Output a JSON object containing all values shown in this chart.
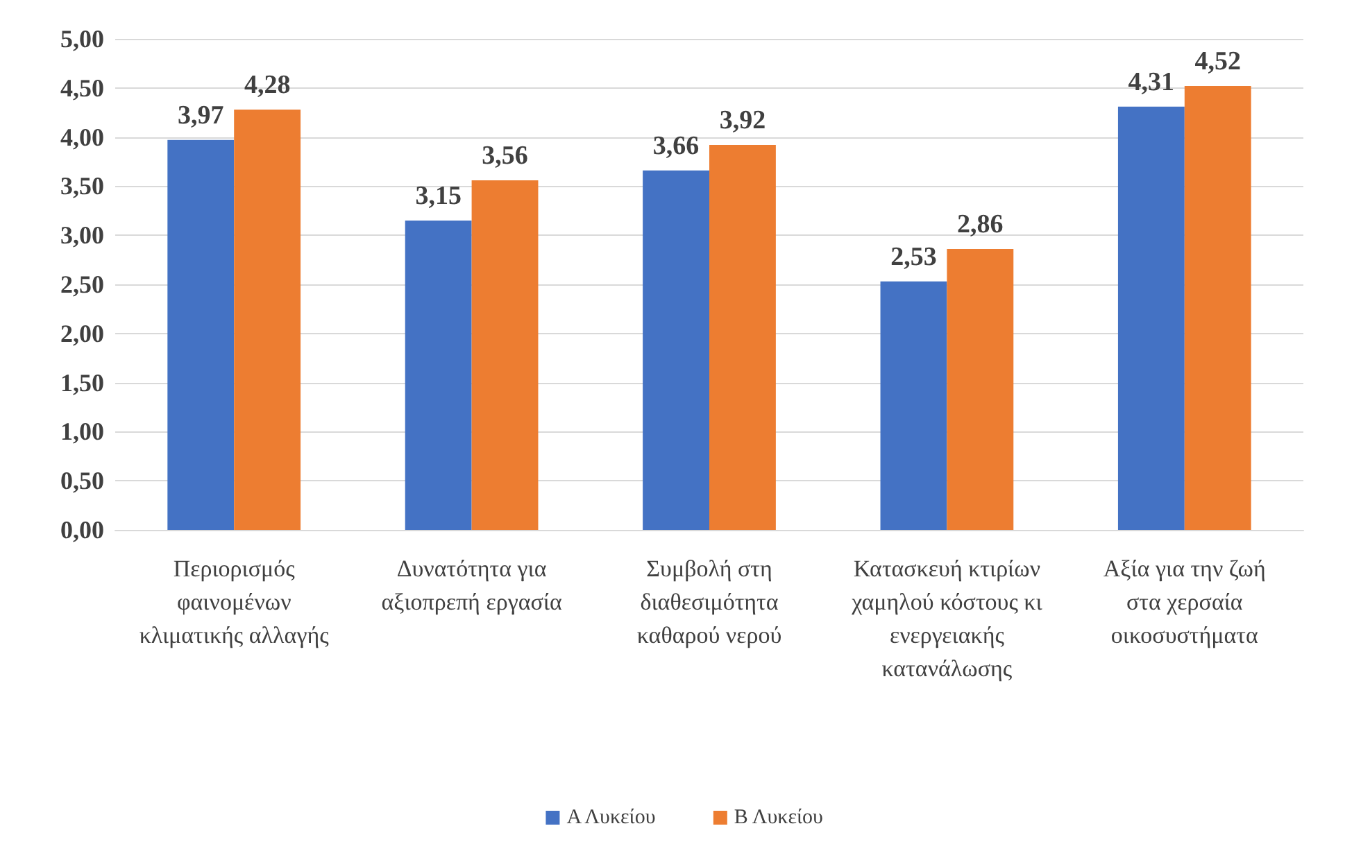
{
  "chart_data": {
    "type": "bar",
    "categories": [
      "Περιορισμός φαινομένων κλιματικής αλλαγής",
      "Δυνατότητα για αξιοπρεπή εργασία",
      "Συμβολή στη διαθεσιμότητα καθαρού νερού",
      "Κατασκευή κτιρίων χαμηλού κόστους κι ενεργειακής κατανάλωσης",
      "Αξία για την ζωή στα χερσαία οικοσυστήματα"
    ],
    "series": [
      {
        "name": "Α Λυκείου",
        "color": "#4472c4",
        "values": [
          3.97,
          3.15,
          3.66,
          2.53,
          4.31
        ],
        "value_labels": [
          "3,97",
          "3,15",
          "3,66",
          "2,53",
          "4,31"
        ]
      },
      {
        "name": "Β Λυκείου",
        "color": "#ed7d31",
        "values": [
          4.28,
          3.56,
          3.92,
          2.86,
          4.52
        ],
        "value_labels": [
          "4,28",
          "3,56",
          "3,92",
          "2,86",
          "4,52"
        ]
      }
    ],
    "ylim": [
      0,
      5
    ],
    "yticks": [
      {
        "value": 0,
        "label": "0,00"
      },
      {
        "value": 0.5,
        "label": "0,50"
      },
      {
        "value": 1,
        "label": "1,00"
      },
      {
        "value": 1.5,
        "label": "1,50"
      },
      {
        "value": 2,
        "label": "2,00"
      },
      {
        "value": 2.5,
        "label": "2,50"
      },
      {
        "value": 3,
        "label": "3,00"
      },
      {
        "value": 3.5,
        "label": "3,50"
      },
      {
        "value": 4,
        "label": "4,00"
      },
      {
        "value": 4.5,
        "label": "4,50"
      },
      {
        "value": 5,
        "label": "5,00"
      }
    ],
    "grid": "y",
    "legend": "bottom"
  }
}
